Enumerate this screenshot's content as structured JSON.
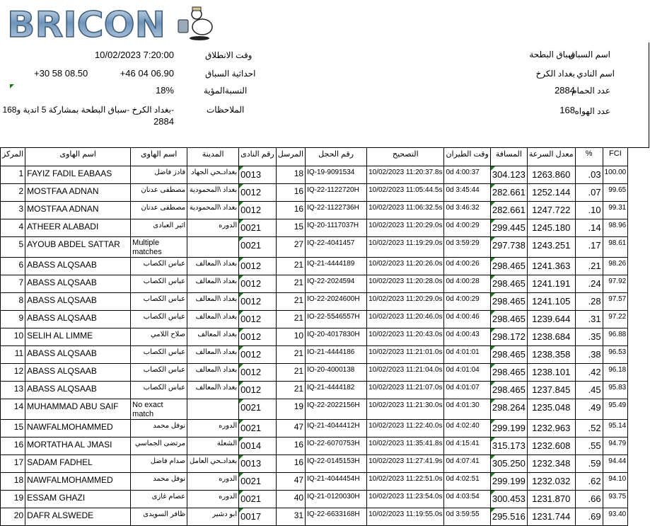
{
  "logo": {
    "text": "BRICON",
    "mascot": "pigeon-with-clock"
  },
  "race_info": {
    "race_name_label": "اسم السباق",
    "race_name": "سباق البطحة",
    "club_name_label": "اسم النادي",
    "club_name": "بغداد الكرخ",
    "pigeon_count_label": "عدد الحمام",
    "pigeon_count": "2884",
    "fancier_count_label": "عدد الهواه",
    "fancier_count": "168",
    "release_time_label": "وقت الانطلاق",
    "release_time": "10/02/2023 7:20:00",
    "coords_label": "احداثية السباق",
    "coord_lat": "+46 04 06.90",
    "coord_lon": "+30 58 08.50",
    "percent_label": "النسبةالمؤية",
    "percent": "18%",
    "notes_label": "الملاحظات",
    "notes_line1": "-بغداد الكرخ -سباق البطحة بمشاركة 5 اندية و168",
    "notes_line2": "2884"
  },
  "colors": {
    "marker": "#1a7a1a"
  },
  "table": {
    "headers": [
      "المركز",
      "اسم الهاوى",
      "اسم الهاوى",
      "المدينة",
      "رقم النادى",
      "المرسل",
      "رقم الحجل",
      "التصحيح",
      "وقت الطيران",
      "المسافة",
      "معدل السرعة",
      "%",
      "FCI"
    ],
    "rows": [
      [
        "1",
        "FAYIZ FADIL EABAAS",
        "فادز فاضل",
        "بغدادـحي الجهاد",
        "0013",
        "18",
        "IQ-19-9091534",
        "10/02/2023 11:20:37.8s",
        "0d 4:00:37",
        "304.123",
        "1263.860",
        ".03",
        "100.00"
      ],
      [
        "2",
        "MOSTFAA ADNAN",
        "مصطفى عدنان",
        "بغداد \\المحمودية",
        "0012",
        "16",
        "IQ-22-1122720H",
        "10/02/2023 11:05:44.5s",
        "0d 3:45:44",
        "282.661",
        "1252.144",
        ".07",
        "99.65"
      ],
      [
        "3",
        "MOSTFAA ADNAN",
        "مصطفى عدنان",
        "بغداد \\المحمودية",
        "0012",
        "16",
        "IQ-22-1122736H",
        "10/02/2023 11:06:32.5s",
        "0d 3:46:32",
        "282.661",
        "1247.722",
        ".10",
        "99.31"
      ],
      [
        "4",
        "ATHEER ALABADI",
        "اثير العبادى",
        "الدوره",
        "0021",
        "15",
        "IQ-20-1117037H",
        "10/02/2023 11:20:29.0s",
        "0d 4:00:29",
        "299.445",
        "1245.180",
        ".14",
        "98.96"
      ],
      [
        "5",
        "AYOUB ABDEL SATTAR",
        "Multiple matches",
        "",
        "0021",
        "27",
        "IQ-22-4041457",
        "10/02/2023 11:19:29.0s",
        "0d 3:59:29",
        "297.738",
        "1243.251",
        ".17",
        "98.61"
      ],
      [
        "6",
        "ABASS ALQSAAB",
        "عباس الكصاب",
        "بغداد \\المعالف",
        "0012",
        "21",
        "IQ-21-4444189",
        "10/02/2023 11:20:26.0s",
        "0d 4:00:26",
        "298.465",
        "1241.363",
        ".21",
        "98.26"
      ],
      [
        "7",
        "ABASS ALQSAAB",
        "عباس الكصاب",
        "بغداد \\المعالف",
        "0012",
        "21",
        "IQ-22-2024594",
        "10/02/2023 11:20:28.0s",
        "0d 4:00:28",
        "298.465",
        "1241.191",
        ".24",
        "97.92"
      ],
      [
        "8",
        "ABASS ALQSAAB",
        "عباس الكصاب",
        "بغداد \\المعالف",
        "0012",
        "21",
        "IO-22-2024600H",
        "10/02/2023 11:20:29.0s",
        "0d 4:00:29",
        "298.465",
        "1241.105",
        ".28",
        "97.57"
      ],
      [
        "9",
        "ABASS ALQSAAB",
        "عباس الكصاب",
        "بغداد \\المعالف",
        "0012",
        "21",
        "IO-22-5546557H",
        "10/02/2023 11:20:46.0s",
        "0d 4:00:46",
        "298.465",
        "1239.644",
        ".31",
        "97.22"
      ],
      [
        "10",
        "SELIH AL LIMME",
        "صلاح اللامي",
        "بغداد  المعالف",
        "0012",
        "10",
        "IQ-20-4017830H",
        "10/02/2023 11:20:43.0s",
        "0d 4:00:43",
        "298.172",
        "1238.684",
        ".35",
        "96.88"
      ],
      [
        "11",
        "ABASS ALQSAAB",
        "عباس الكصاب",
        "بغداد \\المعالف",
        "0012",
        "21",
        "IO-21-4444186",
        "10/02/2023 11:21:01.0s",
        "0d 4:01:01",
        "298.465",
        "1238.358",
        ".38",
        "96.53"
      ],
      [
        "12",
        "ABASS ALQSAAB",
        "عباس الكصاب",
        "بغداد \\المعالف",
        "0012",
        "21",
        "IO-20-4000138",
        "10/02/2023 11:21:04.0s",
        "0d 4:01:04",
        "298.465",
        "1238.101",
        ".42",
        "96.18"
      ],
      [
        "13",
        "ABASS ALQSAAB",
        "عباس الكصاب",
        "بغداد \\المعالف",
        "0012",
        "21",
        "IQ-21-4444182",
        "10/02/2023 11:21:07.0s",
        "0d 4:01:07",
        "298.465",
        "1237.845",
        ".45",
        "95.83"
      ],
      [
        "14",
        "MUHAMMAD ABU SAIF",
        "No exact match",
        "",
        "0021",
        "19",
        "IQ-22-2022156H",
        "10/02/2023 11:21:30.0s",
        "0d 4:01:30",
        "298.264",
        "1235.048",
        ".49",
        "95.49"
      ],
      [
        "15",
        "NAWFALMOHAMMED",
        "نوفل محمد",
        "الدوره",
        "0021",
        "47",
        "IQ-21-4044412H",
        "10/02/2023 11:22:40.0s",
        "0d 4:02:40",
        "299.199",
        "1232.963",
        ".52",
        "95.14"
      ],
      [
        "16",
        "MORTATHA AL JMASI",
        "مرتضى الجماسي",
        "الشعلة",
        "0014",
        "16",
        "IO-22-6070753H",
        "10/02/2023 11:35:41.8s",
        "0d 4:15:41",
        "315.173",
        "1232.608",
        ".55",
        "94.79"
      ],
      [
        "17",
        "SADAM FADHEL",
        "صدام فاضل",
        "بغدادـحي العامل",
        "0013",
        "16",
        "IQ-22-0145153H",
        "10/02/2023 11:27:41.9s",
        "0d 4:07:41",
        "305.250",
        "1232.348",
        ".59",
        "94.44"
      ],
      [
        "18",
        "NAWFALMOHAMMED",
        "نوفل محمد",
        "الدوره",
        "0021",
        "47",
        "IQ-21-4044454H",
        "10/02/2023 11:22:51.0s",
        "0d 4:02:51",
        "299.199",
        "1232.032",
        ".62",
        "94.10"
      ],
      [
        "19",
        "ESSAM GHAZI",
        "عصام غازى",
        "الدوره",
        "0021",
        "40",
        "IQ-21-0120030H",
        "10/02/2023 11:23:54.0s",
        "0d 4:03:54",
        "300.453",
        "1231.870",
        ".66",
        "93.75"
      ],
      [
        "20",
        "DAFR ALSWEDE",
        "ظافر السويدى",
        "ابو دشير",
        "0017",
        "31",
        "IQ-22-6633168H",
        "10/02/2023 11:19:55.0s",
        "0d 3:59:55",
        "295.516",
        "1231.744",
        ".69",
        "93.40"
      ]
    ]
  }
}
